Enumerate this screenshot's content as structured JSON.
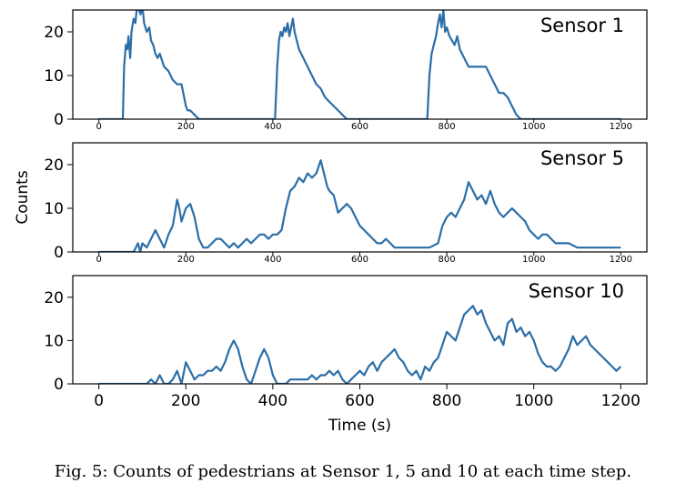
{
  "caption": "Fig. 5: Counts of pedestrians at Sensor 1, 5 and 10 at each time step.",
  "line_color": "#2b6ea8",
  "chart_data": {
    "type": "line",
    "xlabel": "Time (s)",
    "ylabel": "Counts",
    "xlim": [
      -60,
      1260
    ],
    "ylim": [
      0,
      25
    ],
    "x_ticks": [
      0,
      200,
      400,
      600,
      800,
      1000,
      1200
    ],
    "x_tick_labels": [
      "0",
      "200",
      "400",
      "600",
      "800",
      "1000",
      "1200"
    ],
    "y_ticks": [
      0,
      10,
      20
    ],
    "y_tick_labels": [
      "0",
      "10",
      "20"
    ],
    "panels": [
      {
        "name": "Sensor 1",
        "x": [
          0,
          55,
          58,
          62,
          65,
          68,
          72,
          75,
          80,
          84,
          88,
          92,
          96,
          100,
          104,
          110,
          116,
          120,
          125,
          130,
          135,
          140,
          150,
          160,
          170,
          180,
          190,
          196,
          200,
          204,
          210,
          220,
          230,
          240,
          300,
          405,
          410,
          414,
          418,
          422,
          426,
          430,
          434,
          438,
          442,
          446,
          450,
          455,
          460,
          470,
          480,
          490,
          500,
          510,
          520,
          530,
          540,
          550,
          560,
          570,
          580,
          600,
          700,
          755,
          760,
          765,
          770,
          775,
          780,
          784,
          788,
          792,
          796,
          800,
          806,
          812,
          818,
          824,
          830,
          840,
          850,
          870,
          890,
          900,
          910,
          920,
          930,
          940,
          950,
          960,
          970,
          1000,
          1200
        ],
        "y": [
          0,
          0,
          12,
          17,
          16,
          19,
          14,
          20,
          23,
          22,
          26,
          25,
          24,
          26,
          22,
          20,
          21,
          18,
          17,
          15,
          14,
          15,
          12,
          11,
          9,
          8,
          8,
          5,
          3,
          2,
          2,
          1,
          0,
          0,
          0,
          0,
          12,
          18,
          20,
          19,
          21,
          20,
          22,
          19,
          21,
          23,
          20,
          18,
          16,
          14,
          12,
          10,
          8,
          7,
          5,
          4,
          3,
          2,
          1,
          0,
          0,
          0,
          0,
          0,
          10,
          15,
          17,
          19,
          22,
          24,
          21,
          25,
          20,
          21,
          19,
          18,
          17,
          19,
          16,
          14,
          12,
          12,
          12,
          10,
          8,
          6,
          6,
          5,
          3,
          1,
          0,
          0,
          0
        ]
      },
      {
        "name": "Sensor 5",
        "x": [
          0,
          80,
          90,
          95,
          100,
          110,
          120,
          130,
          140,
          150,
          160,
          170,
          180,
          185,
          190,
          200,
          210,
          220,
          230,
          240,
          250,
          260,
          270,
          280,
          290,
          300,
          310,
          320,
          330,
          340,
          350,
          360,
          370,
          380,
          390,
          400,
          410,
          420,
          430,
          440,
          450,
          460,
          470,
          480,
          490,
          500,
          510,
          520,
          525,
          530,
          540,
          550,
          560,
          570,
          580,
          590,
          600,
          610,
          620,
          630,
          640,
          650,
          660,
          670,
          680,
          690,
          700,
          720,
          740,
          760,
          780,
          790,
          800,
          810,
          820,
          830,
          840,
          850,
          855,
          860,
          870,
          880,
          890,
          900,
          910,
          920,
          930,
          940,
          950,
          960,
          970,
          980,
          990,
          1000,
          1010,
          1020,
          1030,
          1040,
          1050,
          1060,
          1080,
          1100,
          1120,
          1150,
          1200
        ],
        "y": [
          0,
          0,
          2,
          0,
          2,
          1,
          3,
          5,
          3,
          1,
          4,
          6,
          12,
          10,
          7,
          10,
          11,
          8,
          3,
          1,
          1,
          2,
          3,
          3,
          2,
          1,
          2,
          1,
          2,
          3,
          2,
          3,
          4,
          4,
          3,
          4,
          4,
          5,
          10,
          14,
          15,
          17,
          16,
          18,
          17,
          18,
          21,
          17,
          15,
          14,
          13,
          9,
          10,
          11,
          10,
          8,
          6,
          5,
          4,
          3,
          2,
          2,
          3,
          2,
          1,
          1,
          1,
          1,
          1,
          1,
          2,
          6,
          8,
          9,
          8,
          10,
          12,
          16,
          15,
          14,
          12,
          13,
          11,
          14,
          11,
          9,
          8,
          9,
          10,
          9,
          8,
          7,
          5,
          4,
          3,
          4,
          4,
          3,
          2,
          2,
          2,
          1,
          1,
          1,
          1
        ]
      },
      {
        "name": "Sensor 10",
        "x": [
          0,
          110,
          120,
          130,
          140,
          150,
          160,
          170,
          180,
          190,
          200,
          210,
          220,
          230,
          240,
          250,
          260,
          270,
          280,
          290,
          300,
          310,
          320,
          330,
          340,
          350,
          360,
          370,
          380,
          390,
          400,
          410,
          420,
          430,
          440,
          450,
          460,
          470,
          480,
          490,
          500,
          510,
          520,
          530,
          540,
          550,
          560,
          570,
          580,
          590,
          600,
          610,
          620,
          630,
          640,
          650,
          660,
          670,
          680,
          690,
          700,
          710,
          720,
          730,
          740,
          750,
          760,
          770,
          780,
          790,
          800,
          810,
          820,
          830,
          840,
          850,
          860,
          870,
          880,
          890,
          900,
          910,
          920,
          930,
          940,
          950,
          960,
          970,
          980,
          990,
          1000,
          1010,
          1020,
          1030,
          1040,
          1050,
          1060,
          1070,
          1080,
          1090,
          1100,
          1110,
          1120,
          1130,
          1140,
          1150,
          1160,
          1170,
          1180,
          1190,
          1200
        ],
        "y": [
          0,
          0,
          1,
          0,
          2,
          0,
          0,
          1,
          3,
          0,
          5,
          3,
          1,
          2,
          2,
          3,
          3,
          4,
          3,
          5,
          8,
          10,
          8,
          4,
          1,
          0,
          3,
          6,
          8,
          6,
          2,
          0,
          0,
          0,
          1,
          1,
          1,
          1,
          1,
          2,
          1,
          2,
          2,
          3,
          2,
          3,
          1,
          0,
          1,
          2,
          3,
          2,
          4,
          5,
          3,
          5,
          6,
          7,
          8,
          6,
          5,
          3,
          2,
          3,
          1,
          4,
          3,
          5,
          6,
          9,
          12,
          11,
          10,
          13,
          16,
          17,
          18,
          16,
          17,
          14,
          12,
          10,
          11,
          9,
          14,
          15,
          12,
          13,
          11,
          12,
          10,
          7,
          5,
          4,
          4,
          3,
          4,
          6,
          8,
          11,
          9,
          10,
          11,
          9,
          8,
          7,
          6,
          5,
          4,
          3,
          4
        ]
      }
    ]
  }
}
